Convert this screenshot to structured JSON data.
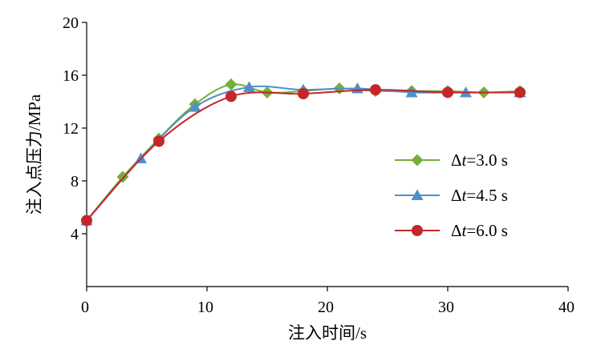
{
  "chart_data": {
    "type": "line",
    "xlabel": "注入时间/s",
    "ylabel": "注入点压力/MPa",
    "xlim": [
      0,
      40
    ],
    "ylim": [
      0,
      20
    ],
    "xticks": [
      "0",
      "10",
      "20",
      "30",
      "40"
    ],
    "yticks": [
      "4",
      "8",
      "12",
      "16",
      "20"
    ],
    "grid": false,
    "legend_position": "right-middle",
    "series": [
      {
        "name": "Δt=3.0 s",
        "legend_prefix": "Δ",
        "legend_var": "t",
        "legend_suffix": "=3.0 s",
        "color": "#77AD38",
        "marker": "diamond",
        "x": [
          0,
          3,
          6,
          9,
          12,
          15,
          18,
          21,
          24,
          27,
          30,
          33,
          36
        ],
        "y": [
          5.0,
          8.3,
          11.2,
          13.8,
          15.3,
          14.7,
          14.8,
          15.0,
          14.8,
          14.8,
          14.8,
          14.7,
          14.8
        ]
      },
      {
        "name": "Δt=4.5 s",
        "legend_prefix": "Δ",
        "legend_var": "t",
        "legend_suffix": "=4.5 s",
        "color": "#4F8FCB",
        "marker": "triangle",
        "x": [
          0,
          4.5,
          9,
          13.5,
          18,
          22.5,
          27,
          31.5,
          36
        ],
        "y": [
          5.0,
          9.7,
          13.6,
          15.1,
          14.9,
          15.0,
          14.7,
          14.7,
          14.7
        ]
      },
      {
        "name": "Δt=6.0 s",
        "legend_prefix": "Δ",
        "legend_var": "t",
        "legend_suffix": "=6.0 s",
        "color": "#C4262C",
        "marker": "circle",
        "x": [
          0,
          6,
          12,
          18,
          24,
          30,
          36
        ],
        "y": [
          5.0,
          11.0,
          14.4,
          14.6,
          14.9,
          14.7,
          14.7
        ]
      }
    ]
  }
}
